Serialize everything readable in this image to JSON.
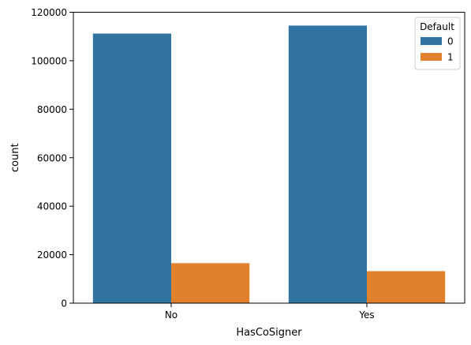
{
  "chart_data": {
    "type": "bar",
    "xlabel": "HasCoSigner",
    "ylabel": "count",
    "categories": [
      "No",
      "Yes"
    ],
    "ylim": [
      0,
      120000
    ],
    "yticks": [
      0,
      20000,
      40000,
      60000,
      80000,
      100000,
      120000
    ],
    "ytick_labels": [
      "0",
      "20000",
      "40000",
      "60000",
      "80000",
      "100000",
      "120000"
    ],
    "grid": false,
    "legend": {
      "title": "Default",
      "placement": "top-right"
    },
    "series": [
      {
        "name": "0",
        "color": "#3274a1",
        "values": [
          111200,
          114500
        ]
      },
      {
        "name": "1",
        "color": "#e1812c",
        "values": [
          16500,
          13200
        ]
      }
    ]
  }
}
